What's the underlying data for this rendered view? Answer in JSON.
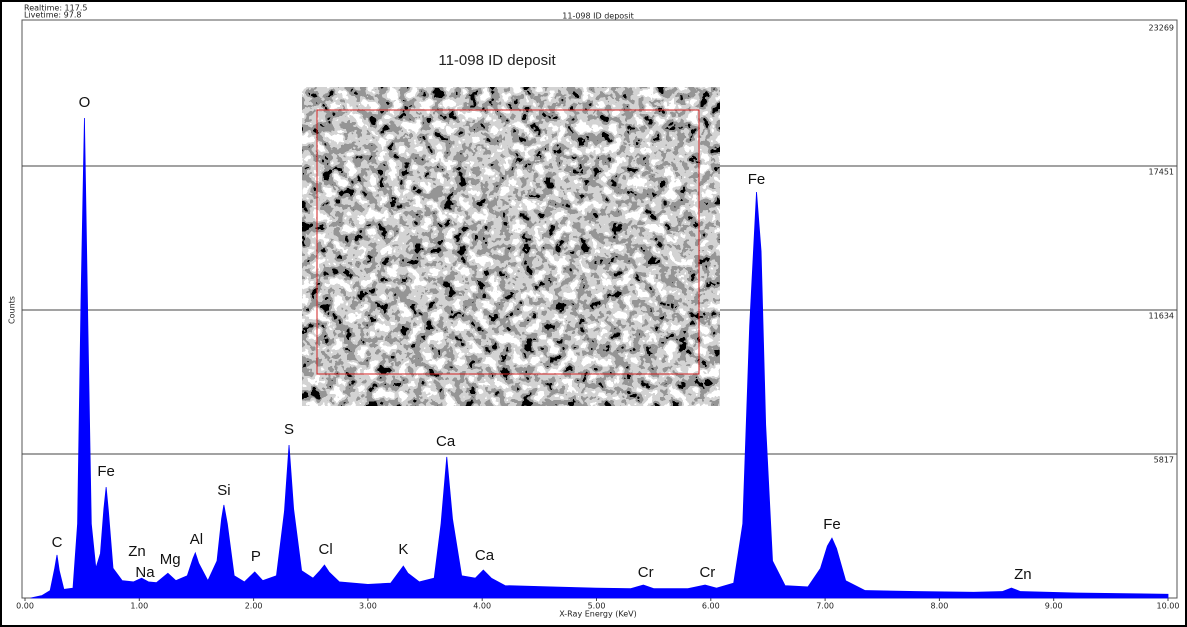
{
  "chart_data": {
    "type": "area",
    "title": "11-098 ID deposit",
    "header_title": "11-098 ID deposit",
    "realtime": "Realtime: 117.5",
    "livetime": "Livetime:  97.8",
    "x_label": "X-Ray Energy (KeV)",
    "y_label": "Counts",
    "color": "#0000ff",
    "grid": true,
    "xlim": [
      0,
      10
    ],
    "ylim": [
      0,
      23269
    ],
    "xticks": [
      {
        "value": 0,
        "label": "0.00"
      },
      {
        "value": 1,
        "label": "1.00"
      },
      {
        "value": 2,
        "label": "2.00"
      },
      {
        "value": 3,
        "label": "3.00"
      },
      {
        "value": 4,
        "label": "4.00"
      },
      {
        "value": 5,
        "label": "5.00"
      },
      {
        "value": 6,
        "label": "6.00"
      },
      {
        "value": 7,
        "label": "7.00"
      },
      {
        "value": 8,
        "label": "8.00"
      },
      {
        "value": 9,
        "label": "9.00"
      },
      {
        "value": 10,
        "label": "10.00"
      }
    ],
    "yticks": [
      5817,
      11634,
      17451,
      23269
    ],
    "x": [
      0.05,
      0.15,
      0.22,
      0.26,
      0.28,
      0.3,
      0.34,
      0.42,
      0.46,
      0.49,
      0.52,
      0.55,
      0.58,
      0.62,
      0.66,
      0.69,
      0.71,
      0.73,
      0.77,
      0.85,
      0.95,
      1.02,
      1.08,
      1.15,
      1.25,
      1.32,
      1.42,
      1.47,
      1.49,
      1.52,
      1.6,
      1.68,
      1.72,
      1.74,
      1.77,
      1.83,
      1.92,
      2.01,
      2.08,
      2.2,
      2.27,
      2.31,
      2.35,
      2.42,
      2.52,
      2.58,
      2.62,
      2.66,
      2.75,
      3.0,
      3.2,
      3.28,
      3.31,
      3.35,
      3.45,
      3.58,
      3.64,
      3.69,
      3.74,
      3.82,
      3.94,
      4.01,
      4.08,
      4.2,
      4.6,
      5.0,
      5.3,
      5.41,
      5.5,
      5.8,
      5.95,
      6.05,
      6.2,
      6.28,
      6.34,
      6.4,
      6.44,
      6.48,
      6.54,
      6.65,
      6.85,
      6.96,
      7.02,
      7.06,
      7.1,
      7.18,
      7.35,
      7.8,
      8.3,
      8.55,
      8.63,
      8.71,
      9.2,
      9.7,
      10.0
    ],
    "values": [
      0,
      100,
      300,
      1200,
      1740,
      1100,
      350,
      400,
      3000,
      12000,
      19390,
      11000,
      3000,
      1200,
      1800,
      3600,
      4480,
      3500,
      1200,
      700,
      650,
      800,
      650,
      620,
      1000,
      700,
      900,
      1600,
      1820,
      1400,
      700,
      1500,
      3200,
      3760,
      3000,
      900,
      650,
      1050,
      700,
      900,
      3500,
      6180,
      3600,
      1100,
      800,
      1100,
      1330,
      1050,
      650,
      550,
      600,
      1100,
      1290,
      1000,
      650,
      800,
      3000,
      5700,
      3200,
      900,
      800,
      1130,
      800,
      500,
      450,
      400,
      380,
      525,
      380,
      380,
      525,
      400,
      600,
      3000,
      11000,
      16400,
      14000,
      7000,
      1500,
      500,
      450,
      1200,
      2100,
      2420,
      2000,
      700,
      300,
      260,
      230,
      260,
      400,
      260,
      200,
      170,
      150
    ],
    "annotations": [
      {
        "text": "C",
        "x": 0.28,
        "y": 2220
      },
      {
        "text": "O",
        "x": 0.52,
        "y": 20000
      },
      {
        "text": "Fe",
        "x": 0.71,
        "y": 5090
      },
      {
        "text": "Zn",
        "x": 0.98,
        "y": 1860
      },
      {
        "text": "Na",
        "x": 1.05,
        "y": 1010
      },
      {
        "text": "Mg",
        "x": 1.27,
        "y": 1540
      },
      {
        "text": "Al",
        "x": 1.5,
        "y": 2340
      },
      {
        "text": "Si",
        "x": 1.74,
        "y": 4320
      },
      {
        "text": "P",
        "x": 2.02,
        "y": 1660
      },
      {
        "text": "S",
        "x": 2.31,
        "y": 6790
      },
      {
        "text": "Cl",
        "x": 2.63,
        "y": 1940
      },
      {
        "text": "K",
        "x": 3.31,
        "y": 1940
      },
      {
        "text": "Ca",
        "x": 3.68,
        "y": 6300
      },
      {
        "text": "Ca",
        "x": 4.02,
        "y": 1700
      },
      {
        "text": "Cr",
        "x": 5.43,
        "y": 1010
      },
      {
        "text": "Cr",
        "x": 5.97,
        "y": 1010
      },
      {
        "text": "Fe",
        "x": 6.4,
        "y": 16890
      },
      {
        "text": "Fe",
        "x": 7.06,
        "y": 2950
      },
      {
        "text": "Zn",
        "x": 8.73,
        "y": 930
      }
    ]
  }
}
